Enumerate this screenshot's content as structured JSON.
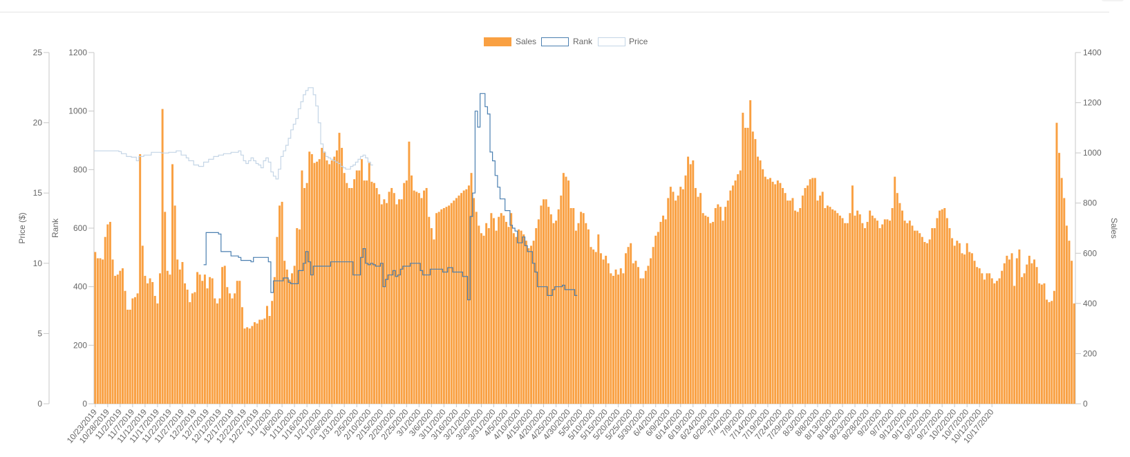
{
  "colors": {
    "sales": "#f9a042",
    "rank": "#4a7fb0",
    "price": "#c4d5e6",
    "axis": "#c7c7c7",
    "tick": "#666666"
  },
  "chart_data": {
    "type": "bar",
    "legend": {
      "position": "top",
      "items": [
        "Sales",
        "Rank",
        "Price"
      ]
    },
    "y_axes": {
      "price": {
        "label": "Price ($)",
        "ticks": [
          "0",
          "5",
          "10",
          "15",
          "20",
          "25"
        ],
        "range": [
          0,
          25
        ]
      },
      "rank": {
        "label": "Rank",
        "ticks": [
          "0",
          "200",
          "400",
          "600",
          "800",
          "1000",
          "1200"
        ],
        "range": [
          0,
          1200
        ]
      },
      "sales": {
        "label": "Sales",
        "ticks": [
          "0",
          "200",
          "400",
          "600",
          "800",
          "1000",
          "1200",
          "1400"
        ],
        "range": [
          0,
          1400
        ]
      }
    },
    "x_tick_labels": [
      "10/23/2019",
      "10/28/2019",
      "11/2/2019",
      "11/7/2019",
      "11/12/2019",
      "11/17/2019",
      "11/22/2019",
      "11/27/2019",
      "12/2/2019",
      "12/7/2019",
      "12/12/2019",
      "12/17/2019",
      "12/22/2019",
      "12/27/2019",
      "1/1/2020",
      "1/6/2020",
      "1/11/2020",
      "1/16/2020",
      "1/21/2020",
      "1/26/2020",
      "1/31/2020",
      "2/5/2020",
      "2/10/2020",
      "2/15/2020",
      "2/20/2020",
      "2/25/2020",
      "3/1/2020",
      "3/6/2020",
      "3/11/2020",
      "3/16/2020",
      "3/21/2020",
      "3/26/2020",
      "3/31/2020",
      "4/5/2020",
      "4/10/2020",
      "4/15/2020",
      "4/20/2020",
      "4/25/2020",
      "4/30/2020",
      "5/5/2020",
      "5/10/2020",
      "5/15/2020",
      "5/20/2020",
      "5/25/2020",
      "5/30/2020",
      "6/4/2020",
      "6/9/2020",
      "6/14/2020",
      "6/19/2020",
      "6/24/2020",
      "6/29/2020",
      "7/4/2020",
      "7/9/2020",
      "7/14/2020",
      "7/19/2020",
      "7/24/2020",
      "7/29/2020",
      "8/3/2020",
      "8/8/2020",
      "8/13/2020",
      "8/18/2020",
      "8/23/2020",
      "8/28/2020",
      "9/2/2020",
      "9/7/2020",
      "9/12/2020",
      "9/17/2020",
      "9/22/2020",
      "9/27/2020",
      "10/2/2020",
      "10/7/2020",
      "10/12/2020",
      "10/17/2020"
    ],
    "series": [
      {
        "name": "Sales",
        "type": "bar",
        "axis": "sales",
        "values": [
          605,
          580,
          580,
          575,
          665,
          715,
          725,
          575,
          510,
          515,
          530,
          540,
          450,
          375,
          375,
          420,
          425,
          440,
          995,
          630,
          510,
          480,
          500,
          485,
          430,
          400,
          520,
          1175,
          765,
          530,
          515,
          955,
          790,
          575,
          535,
          565,
          480,
          455,
          405,
          440,
          445,
          525,
          515,
          490,
          515,
          460,
          505,
          500,
          420,
          400,
          420,
          545,
          550,
          465,
          440,
          420,
          440,
          490,
          490,
          385,
          300,
          305,
          300,
          310,
          325,
          320,
          335,
          335,
          340,
          390,
          350,
          410,
          505,
          665,
          790,
          805,
          570,
          535,
          495,
          520,
          550,
          700,
          695,
          930,
          860,
          880,
          1005,
          995,
          960,
          965,
          975,
          1020,
          1005,
          970,
          955,
          970,
          985,
          1010,
          1080,
          1020,
          920,
          880,
          860,
          860,
          895,
          930,
          930,
          975,
          890,
          890,
          960,
          885,
          880,
          860,
          835,
          795,
          815,
          800,
          845,
          860,
          840,
          795,
          815,
          815,
          880,
          890,
          1045,
          910,
          850,
          845,
          840,
          820,
          850,
          860,
          745,
          700,
          655,
          760,
          765,
          775,
          780,
          785,
          790,
          800,
          810,
          820,
          830,
          840,
          850,
          855,
          870,
          920,
          820,
          765,
          710,
          680,
          670,
          720,
          700,
          760,
          740,
          690,
          745,
          760,
          750,
          725,
          705,
          760,
          680,
          665,
          695,
          690,
          675,
          650,
          620,
          630,
          650,
          700,
          735,
          790,
          815,
          815,
          785,
          755,
          720,
          730,
          775,
          830,
          920,
          905,
          890,
          780,
          780,
          690,
          720,
          765,
          760,
          720,
          695,
          625,
          615,
          605,
          675,
          600,
          575,
          590,
          560,
          520,
          510,
          535,
          515,
          540,
          520,
          600,
          625,
          640,
          560,
          570,
          545,
          500,
          500,
          530,
          550,
          580,
          625,
          670,
          685,
          725,
          750,
          735,
          820,
          865,
          845,
          810,
          830,
          865,
          855,
          910,
          985,
          955,
          970,
          860,
          825,
          840,
          760,
          750,
          745,
          720,
          725,
          780,
          795,
          785,
          730,
          785,
          810,
          850,
          870,
          890,
          915,
          930,
          1160,
          1100,
          1100,
          1210,
          1085,
          1055,
          985,
          970,
          935,
          905,
          895,
          900,
          885,
          875,
          890,
          880,
          860,
          840,
          810,
          810,
          820,
          770,
          765,
          780,
          830,
          860,
          870,
          895,
          900,
          900,
          810,
          830,
          845,
          780,
          790,
          785,
          775,
          770,
          760,
          750,
          740,
          720,
          720,
          760,
          870,
          750,
          770,
          755,
          720,
          700,
          725,
          770,
          750,
          740,
          730,
          700,
          715,
          735,
          735,
          730,
          780,
          905,
          840,
          800,
          770,
          730,
          720,
          730,
          710,
          690,
          690,
          680,
          665,
          645,
          640,
          655,
          700,
          700,
          740,
          770,
          775,
          780,
          740,
          700,
          660,
          630,
          650,
          640,
          600,
          595,
          640,
          605,
          600,
          570,
          545,
          540,
          520,
          495,
          520,
          520,
          500,
          480,
          490,
          500,
          530,
          560,
          590,
          575,
          600,
          470,
          580,
          615,
          505,
          520,
          555,
          590,
          560,
          575,
          545,
          480,
          475,
          480,
          415,
          405,
          410,
          450,
          1120,
          1000,
          900,
          820,
          710,
          650,
          570,
          400
        ]
      },
      {
        "name": "Rank",
        "type": "line",
        "axis": "rank",
        "values": [],
        "points": [
          [
            0,
            null
          ],
          [
            44,
            475
          ],
          [
            45,
            585
          ],
          [
            50,
            580
          ],
          [
            51,
            520
          ],
          [
            55,
            505
          ],
          [
            58,
            500
          ],
          [
            59,
            490
          ],
          [
            63,
            485
          ],
          [
            64,
            500
          ],
          [
            70,
            485
          ],
          [
            71,
            380
          ],
          [
            72,
            420
          ],
          [
            73,
            420
          ],
          [
            76,
            430
          ],
          [
            78,
            415
          ],
          [
            79,
            410
          ],
          [
            82,
            455
          ],
          [
            84,
            480
          ],
          [
            85,
            520
          ],
          [
            86,
            485
          ],
          [
            87,
            440
          ],
          [
            88,
            470
          ],
          [
            94,
            470
          ],
          [
            95,
            485
          ],
          [
            104,
            440
          ],
          [
            107,
            500
          ],
          [
            108,
            530
          ],
          [
            109,
            480
          ],
          [
            110,
            475
          ],
          [
            111,
            480
          ],
          [
            112,
            475
          ],
          [
            113,
            470
          ],
          [
            114,
            470
          ],
          [
            115,
            480
          ],
          [
            116,
            400
          ],
          [
            117,
            425
          ],
          [
            118,
            440
          ],
          [
            120,
            455
          ],
          [
            121,
            435
          ],
          [
            122,
            440
          ],
          [
            123,
            460
          ],
          [
            124,
            470
          ],
          [
            127,
            480
          ],
          [
            131,
            455
          ],
          [
            132,
            440
          ],
          [
            135,
            460
          ],
          [
            140,
            450
          ],
          [
            142,
            465
          ],
          [
            144,
            450
          ],
          [
            148,
            435
          ],
          [
            150,
            355
          ],
          [
            151,
            640
          ],
          [
            152,
            720
          ],
          [
            153,
            1000
          ],
          [
            154,
            945
          ],
          [
            155,
            1060
          ],
          [
            156,
            1060
          ],
          [
            157,
            1015
          ],
          [
            158,
            990
          ],
          [
            159,
            860
          ],
          [
            160,
            830
          ],
          [
            161,
            780
          ],
          [
            162,
            740
          ],
          [
            163,
            700
          ],
          [
            164,
            700
          ],
          [
            165,
            660
          ],
          [
            166,
            660
          ],
          [
            167,
            610
          ],
          [
            168,
            600
          ],
          [
            169,
            590
          ],
          [
            170,
            550
          ],
          [
            172,
            570
          ],
          [
            173,
            540
          ],
          [
            174,
            520
          ],
          [
            176,
            480
          ],
          [
            177,
            450
          ],
          [
            178,
            400
          ],
          [
            182,
            370
          ],
          [
            184,
            390
          ],
          [
            185,
            400
          ],
          [
            187,
            400
          ],
          [
            188,
            405
          ],
          [
            189,
            390
          ],
          [
            193,
            370
          ]
        ]
      },
      {
        "name": "Price",
        "type": "line",
        "axis": "price",
        "values": [],
        "points": [
          [
            0,
            null
          ],
          [
            0,
            18.0
          ],
          [
            10,
            17.95
          ],
          [
            11,
            17.8
          ],
          [
            13,
            17.6
          ],
          [
            15,
            17.55
          ],
          [
            17,
            17.3
          ],
          [
            18,
            17.6
          ],
          [
            20,
            17.7
          ],
          [
            23,
            17.9
          ],
          [
            27,
            17.85
          ],
          [
            30,
            17.9
          ],
          [
            33,
            18.0
          ],
          [
            35,
            17.7
          ],
          [
            37,
            17.5
          ],
          [
            38,
            17.3
          ],
          [
            40,
            17.0
          ],
          [
            42,
            16.9
          ],
          [
            44,
            17.2
          ],
          [
            46,
            17.4
          ],
          [
            48,
            17.6
          ],
          [
            50,
            17.7
          ],
          [
            52,
            17.8
          ],
          [
            55,
            17.9
          ],
          [
            58,
            18.0
          ],
          [
            59,
            17.7
          ],
          [
            60,
            17.3
          ],
          [
            61,
            17.1
          ],
          [
            62,
            17.3
          ],
          [
            63,
            17.5
          ],
          [
            64,
            17.3
          ],
          [
            65,
            17.1
          ],
          [
            66,
            17.0
          ],
          [
            67,
            16.8
          ],
          [
            68,
            17.3
          ],
          [
            69,
            17.5
          ],
          [
            70,
            17.2
          ],
          [
            71,
            16.5
          ],
          [
            72,
            16.2
          ],
          [
            73,
            16.0
          ],
          [
            74,
            16.7
          ],
          [
            75,
            17.6
          ],
          [
            76,
            18.0
          ],
          [
            77,
            18.4
          ],
          [
            78,
            18.9
          ],
          [
            79,
            19.5
          ],
          [
            80,
            19.9
          ],
          [
            81,
            20.3
          ],
          [
            82,
            21.0
          ],
          [
            83,
            21.5
          ],
          [
            84,
            22.0
          ],
          [
            85,
            22.3
          ],
          [
            86,
            22.5
          ],
          [
            87,
            22.5
          ],
          [
            88,
            22.0
          ],
          [
            89,
            21.2
          ],
          [
            90,
            20.0
          ],
          [
            91,
            18.5
          ],
          [
            92,
            17.9
          ],
          [
            93,
            17.6
          ],
          [
            94,
            17.5
          ],
          [
            95,
            17.4
          ],
          [
            96,
            17.3
          ],
          [
            97,
            17.2
          ],
          [
            98,
            17.1
          ],
          [
            99,
            16.9
          ],
          [
            100,
            16.8
          ],
          [
            101,
            16.7
          ],
          [
            102,
            16.7
          ],
          [
            103,
            16.9
          ],
          [
            104,
            17.0
          ],
          [
            105,
            17.2
          ],
          [
            106,
            17.4
          ],
          [
            107,
            17.6
          ],
          [
            108,
            17.7
          ],
          [
            109,
            17.5
          ],
          [
            110,
            17.2
          ],
          [
            111,
            17.0
          ]
        ]
      }
    ]
  }
}
